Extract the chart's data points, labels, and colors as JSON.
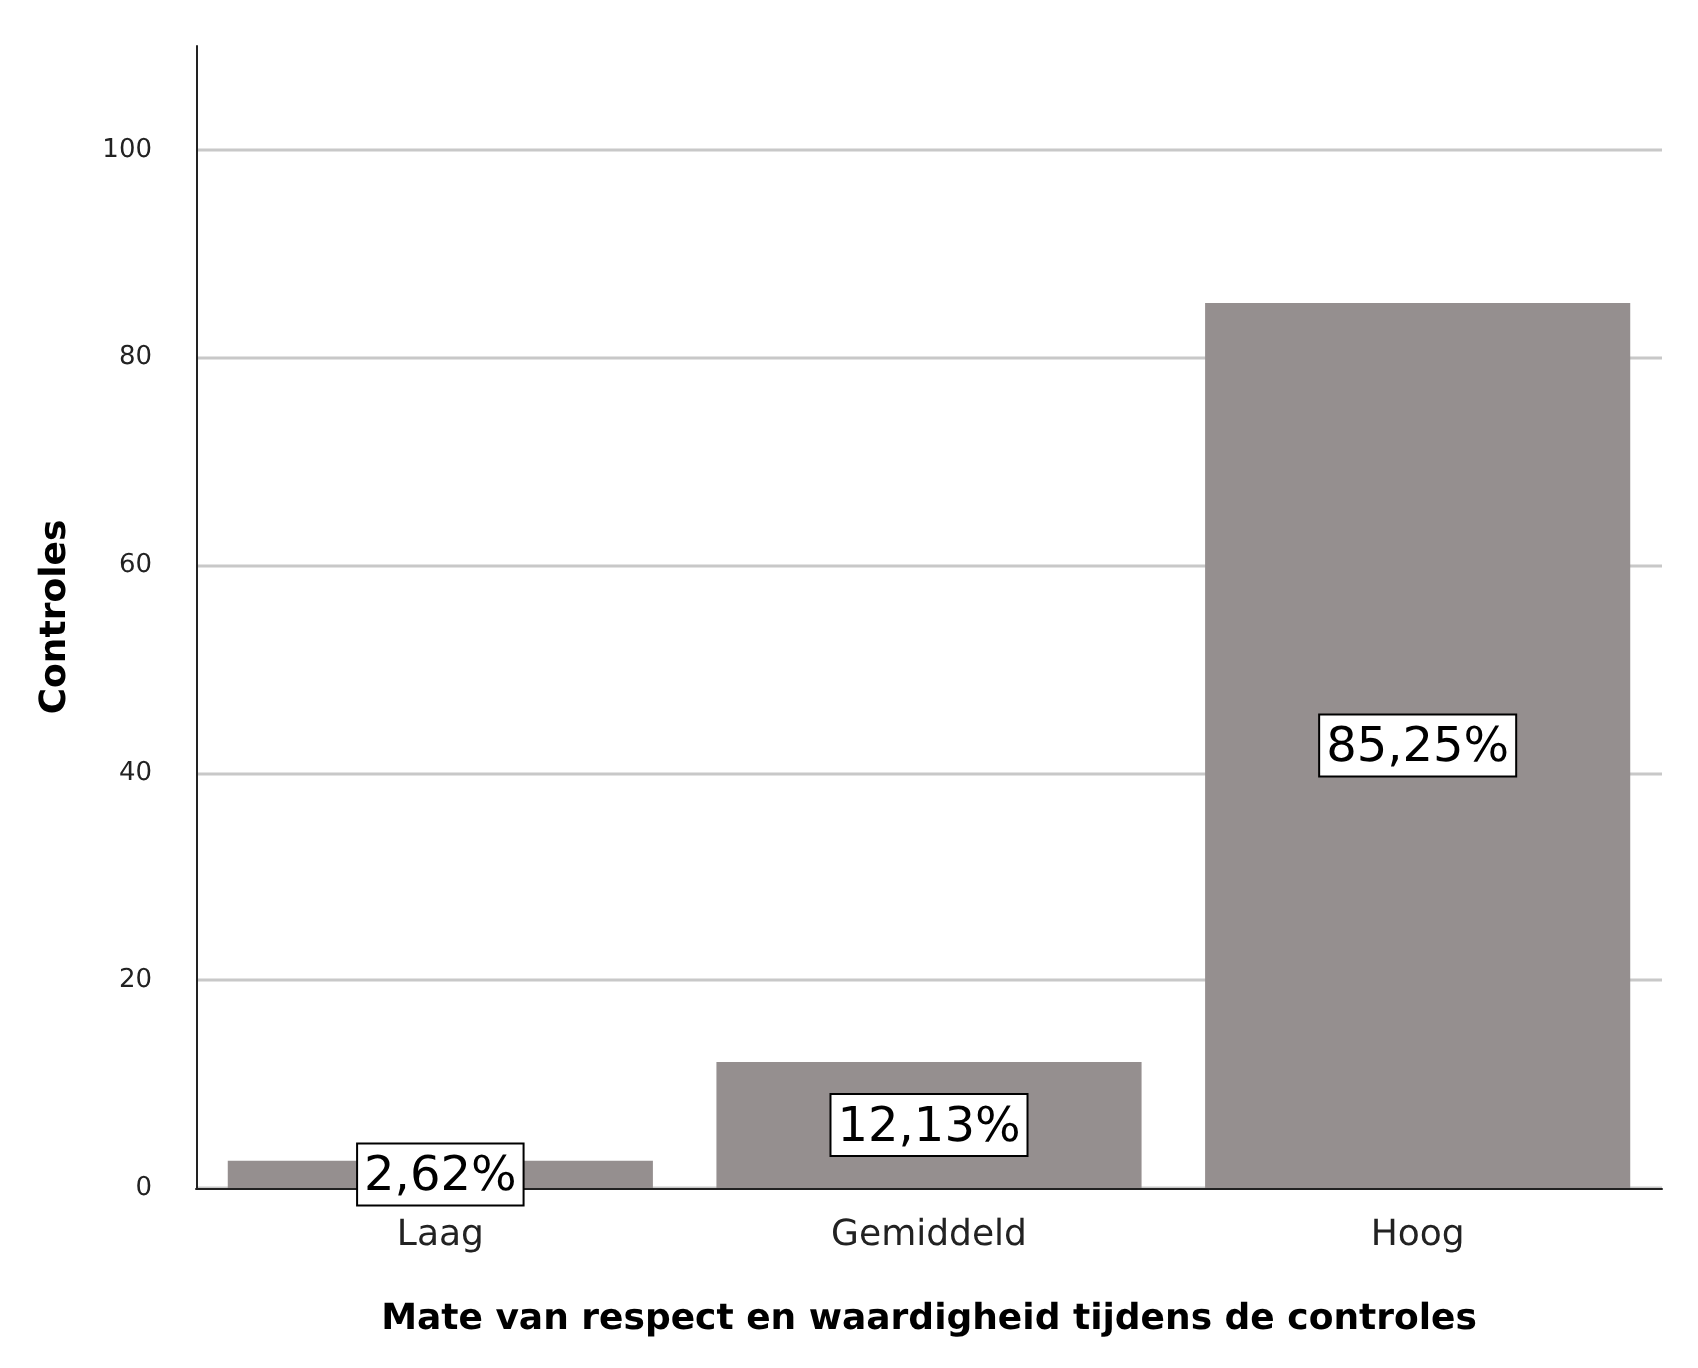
{
  "chart_data": {
    "type": "bar",
    "xlabel": "Mate van respect en waardigheid tijdens de controles",
    "ylabel": "Controles",
    "categories": [
      "Laag",
      "Gemiddeld",
      "Hoog"
    ],
    "values": [
      2.62,
      12.13,
      85.25
    ],
    "value_labels": [
      "2,62%",
      "12,13%",
      "85,25%"
    ],
    "color": "#958f8f",
    "ylim": [
      0,
      110
    ],
    "yticks": [
      0,
      20,
      40,
      60,
      80,
      100
    ],
    "grid": "y"
  }
}
